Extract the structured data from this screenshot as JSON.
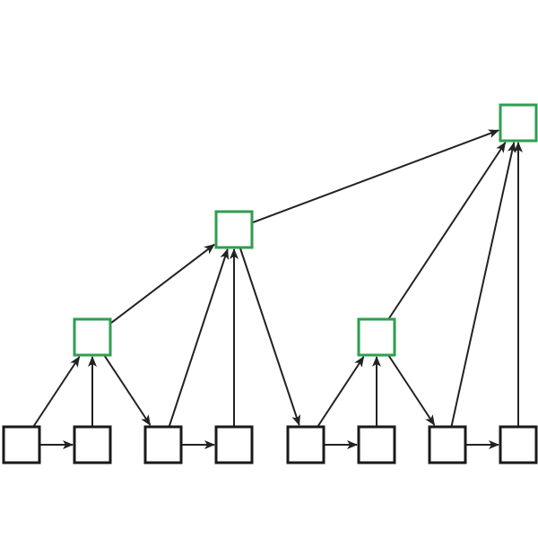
{
  "colors": {
    "background": "#ffffff",
    "box_default": "#1a1a1a",
    "box_highlight": "#2e9e4f",
    "arrow": "#222222"
  },
  "nodes": [
    {
      "id": "b1",
      "highlighted": false
    },
    {
      "id": "b2",
      "highlighted": false
    },
    {
      "id": "b3",
      "highlighted": false
    },
    {
      "id": "b4",
      "highlighted": false
    },
    {
      "id": "b5",
      "highlighted": false
    },
    {
      "id": "b6",
      "highlighted": false
    },
    {
      "id": "b7",
      "highlighted": false
    },
    {
      "id": "b8",
      "highlighted": false
    },
    {
      "id": "m1",
      "highlighted": true
    },
    {
      "id": "m2",
      "highlighted": true
    },
    {
      "id": "u1",
      "highlighted": true
    },
    {
      "id": "t1",
      "highlighted": true
    }
  ],
  "edges": [
    {
      "from": "b1",
      "to": "b2"
    },
    {
      "from": "b3",
      "to": "b4"
    },
    {
      "from": "b5",
      "to": "b6"
    },
    {
      "from": "b7",
      "to": "b8"
    },
    {
      "from": "b1",
      "to": "m1"
    },
    {
      "from": "b2",
      "to": "m1"
    },
    {
      "from": "m1",
      "to": "b3"
    },
    {
      "from": "b5",
      "to": "m2"
    },
    {
      "from": "b6",
      "to": "m2"
    },
    {
      "from": "m2",
      "to": "b7"
    },
    {
      "from": "m1",
      "to": "u1"
    },
    {
      "from": "b3",
      "to": "u1"
    },
    {
      "from": "b4",
      "to": "u1"
    },
    {
      "from": "u1",
      "to": "b5"
    },
    {
      "from": "u1",
      "to": "t1"
    },
    {
      "from": "m2",
      "to": "t1"
    },
    {
      "from": "b7",
      "to": "t1"
    },
    {
      "from": "b8",
      "to": "t1"
    }
  ]
}
